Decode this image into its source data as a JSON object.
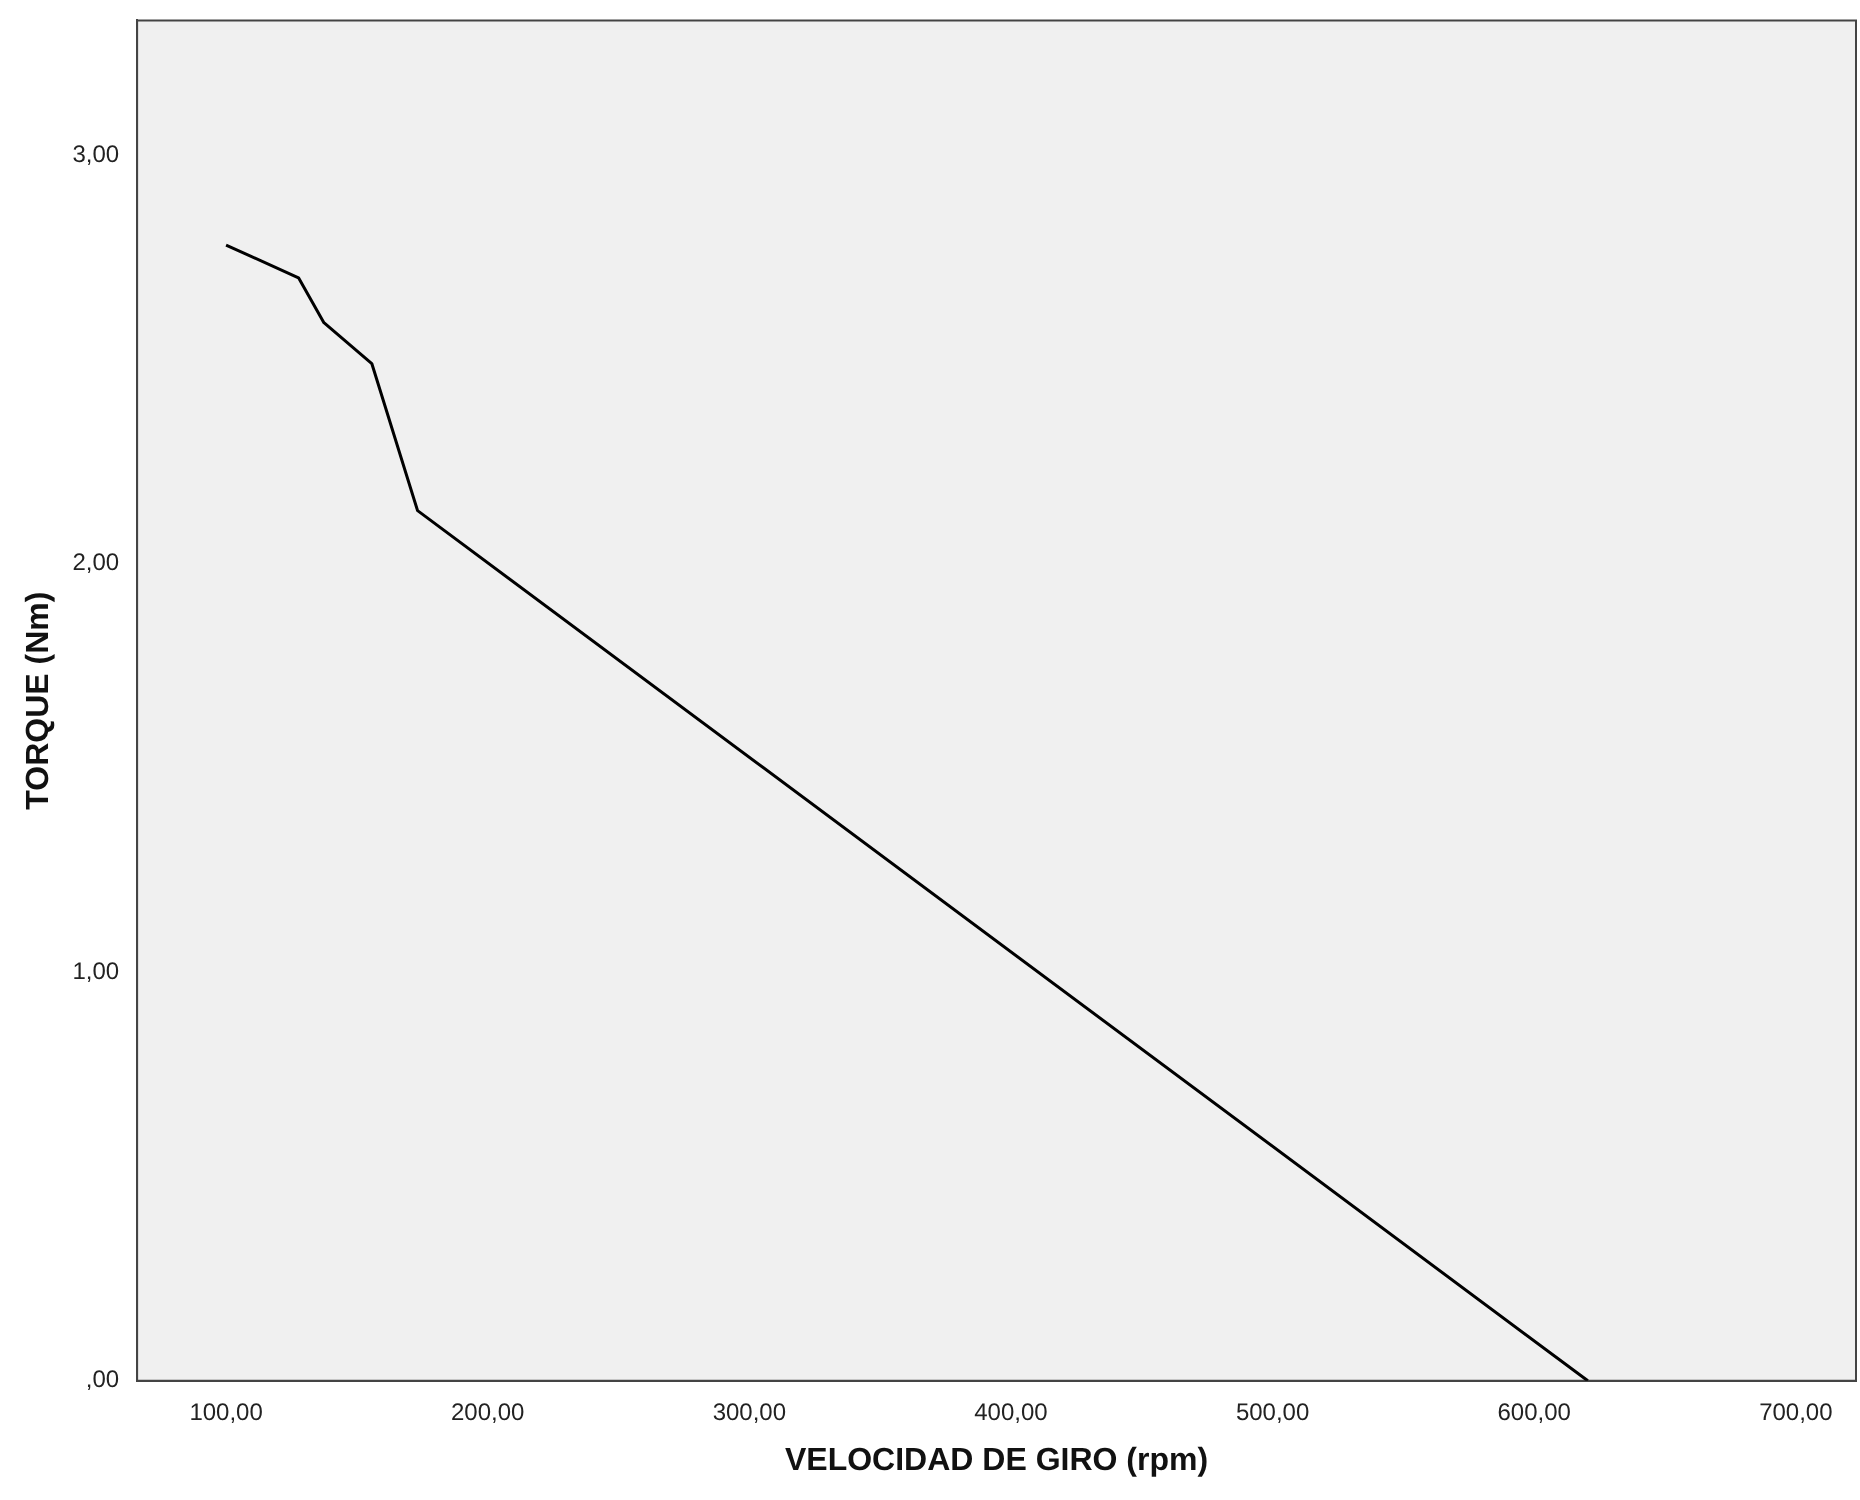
{
  "chart_data": {
    "type": "line",
    "xlabel": "VELOCIDAD DE GIRO (rpm)",
    "ylabel": "TORQUE (Nm)",
    "x": [
      100,
      127.7,
      137.4,
      155.7,
      173.2,
      620.5
    ],
    "series": [
      {
        "color": "#000000",
        "values": [
          2.78,
          2.7,
          2.59,
          2.49,
          2.13,
          0
        ]
      }
    ],
    "xlim": [
      66,
      723
    ],
    "ylim": [
      0,
      3.33
    ],
    "xticks": [
      {
        "value": 100,
        "label": "100,00"
      },
      {
        "value": 200,
        "label": "200,00"
      },
      {
        "value": 300,
        "label": "300,00"
      },
      {
        "value": 400,
        "label": "400,00"
      },
      {
        "value": 500,
        "label": "500,00"
      },
      {
        "value": 600,
        "label": "600,00"
      },
      {
        "value": 700,
        "label": "700,00"
      }
    ],
    "yticks": [
      {
        "value": 0,
        "label": ",00"
      },
      {
        "value": 1,
        "label": "1,00"
      },
      {
        "value": 2,
        "label": "2,00"
      },
      {
        "value": 3,
        "label": "3,00"
      }
    ],
    "grid": false,
    "legend": false,
    "marker": "none",
    "line_style": "solid"
  }
}
